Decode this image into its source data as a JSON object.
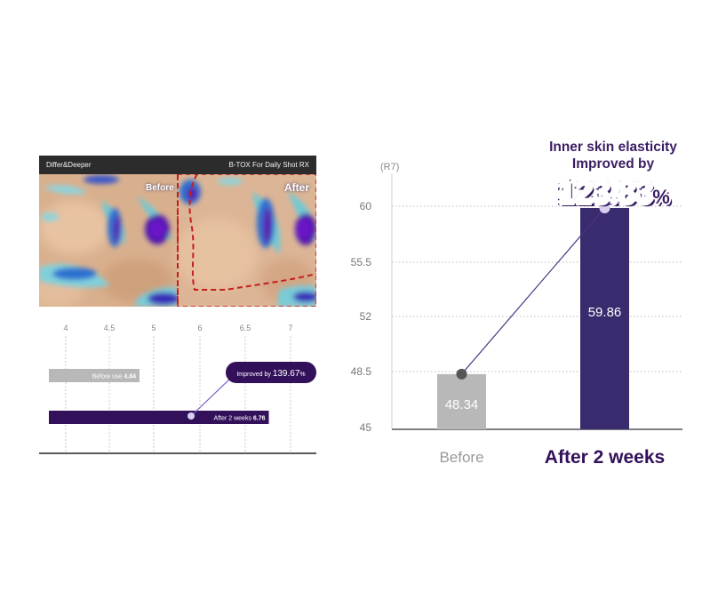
{
  "photo": {
    "brand": "Differ&Deeper",
    "product": "B-TOX For Daily Shot RX",
    "label_before": "Before",
    "label_after": "After"
  },
  "headline": {
    "line1": "Inner skin elasticity",
    "line2": "Improved by",
    "value": "123.83",
    "unit": "%"
  },
  "colors": {
    "dark_purple": "#3a2a6e",
    "deep_purple": "#33105a",
    "gray_bar": "#b8b8b8",
    "accent_dot": "#d9d0f0"
  },
  "chart_data": [
    {
      "type": "bar",
      "orientation": "horizontal",
      "ticks": [
        "4",
        "4.5",
        "5",
        "6",
        "6.5",
        "7"
      ],
      "xlim": [
        4,
        7
      ],
      "categories": [
        "Before use",
        "After 2 weeks"
      ],
      "values": [
        4.84,
        6.76
      ],
      "value_labels": [
        "4.84",
        "6.76"
      ],
      "annotation": {
        "text": "Improved by",
        "value": "139.67",
        "unit": "%"
      },
      "grid": true,
      "legend": "none"
    },
    {
      "type": "bar",
      "orientation": "vertical",
      "unit_label": "(R7)",
      "categories": [
        "Before",
        "After 2 weeks"
      ],
      "values": [
        48.34,
        59.86
      ],
      "value_labels": [
        "48.34",
        "59.86"
      ],
      "ylim": [
        45,
        60
      ],
      "yticks": [
        "60",
        "55.5",
        "52",
        "48.5",
        "45"
      ],
      "grid": true,
      "legend": "none"
    }
  ]
}
